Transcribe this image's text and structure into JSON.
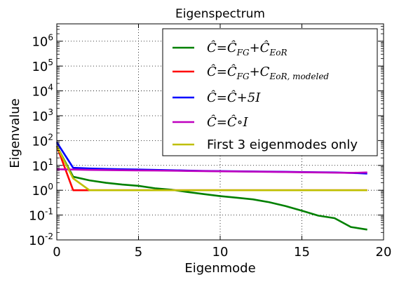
{
  "chart_data": {
    "type": "line",
    "title": "Eigenspectrum",
    "xlabel": "Eigenmode",
    "ylabel": "Eigenvalue",
    "xlim": [
      0,
      20
    ],
    "ylim": [
      0.01,
      5000000
    ],
    "yscale": "log",
    "grid": true,
    "legend_position": "upper-right",
    "x_ticks": [
      0,
      5,
      10,
      15,
      20
    ],
    "y_ticks": [
      {
        "value": 0.01,
        "base": "10",
        "exp": "-2"
      },
      {
        "value": 0.1,
        "base": "10",
        "exp": "-1"
      },
      {
        "value": 1,
        "base": "10",
        "exp": "0"
      },
      {
        "value": 10,
        "base": "10",
        "exp": "1"
      },
      {
        "value": 100,
        "base": "10",
        "exp": "2"
      },
      {
        "value": 1000,
        "base": "10",
        "exp": "3"
      },
      {
        "value": 10000,
        "base": "10",
        "exp": "4"
      },
      {
        "value": 100000,
        "base": "10",
        "exp": "5"
      },
      {
        "value": 1000000,
        "base": "10",
        "exp": "6"
      }
    ],
    "x": [
      0,
      1,
      2,
      3,
      4,
      5,
      6,
      7,
      8,
      9,
      10,
      11,
      12,
      13,
      14,
      15,
      16,
      17,
      18,
      19
    ],
    "series": [
      {
        "name": "Ĉ = Ĉ_FG + Ĉ_EoR",
        "label": {
          "lhs": "Ĉ",
          "t1": "Ĉ",
          "s1": "FG",
          "t2": "Ĉ",
          "s2": "EoR"
        },
        "color": "#008000",
        "values": [
          60,
          3.5,
          2.5,
          2.0,
          1.7,
          1.5,
          1.2,
          1.05,
          0.85,
          0.7,
          0.58,
          0.5,
          0.43,
          0.33,
          0.23,
          0.15,
          0.095,
          0.075,
          0.033,
          0.026
        ]
      },
      {
        "name": "Ĉ = Ĉ_FG + C_EoR,modeled",
        "label": {
          "lhs": "Ĉ",
          "t1": "Ĉ",
          "s1": "FG",
          "t2": "C",
          "s2": "EoR, modeled"
        },
        "color": "#ff0000",
        "values": [
          60,
          1.0,
          1.0,
          1.0,
          1.0,
          1.0,
          1.0,
          1.0,
          1.0,
          1.0,
          1.0,
          1.0,
          1.0,
          1.0,
          1.0,
          1.0,
          1.0,
          1.0,
          1.0,
          1.0
        ]
      },
      {
        "name": "Ĉ = Ĉ + 5I",
        "label": {
          "lhs": "Ĉ",
          "t1": "Ĉ",
          "op": "+",
          "t2": "5I"
        },
        "color": "#0000ff",
        "values": [
          85,
          8.0,
          7.5,
          7.2,
          7.0,
          6.8,
          6.6,
          6.4,
          6.2,
          6.0,
          5.9,
          5.8,
          5.7,
          5.6,
          5.5,
          5.4,
          5.3,
          5.2,
          5.0,
          4.7
        ]
      },
      {
        "name": "Ĉ = Ĉ ∘ I",
        "label": {
          "lhs": "Ĉ",
          "t1": "Ĉ",
          "op": "∘",
          "t2": "I"
        },
        "color": "#bf00bf",
        "values": [
          7.0,
          6.8,
          6.6,
          6.5,
          6.4,
          6.3,
          6.2,
          6.1,
          6.0,
          5.9,
          5.8,
          5.7,
          5.6,
          5.5,
          5.4,
          5.3,
          5.2,
          5.1,
          5.0,
          5.2
        ]
      },
      {
        "name": "First 3 eigenmodes only",
        "label": {
          "plain": "First 3 eigenmodes only"
        },
        "color": "#bfbf00",
        "values": [
          60,
          3.0,
          1.0,
          1.0,
          1.0,
          1.0,
          1.0,
          1.0,
          1.0,
          1.0,
          1.0,
          1.0,
          1.0,
          1.0,
          1.0,
          1.0,
          1.0,
          1.0,
          1.0,
          1.0
        ]
      }
    ]
  }
}
